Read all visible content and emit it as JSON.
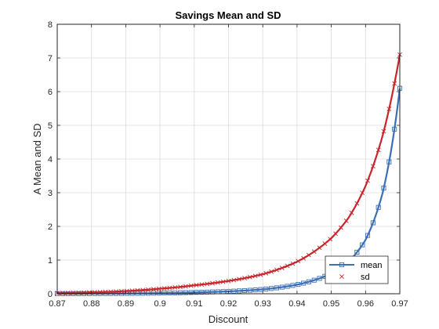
{
  "chart_data": {
    "type": "line",
    "title": "Savings Mean and SD",
    "xlabel": "Discount",
    "ylabel": "A Mean and SD",
    "xlim": [
      0.87,
      0.97
    ],
    "ylim": [
      0,
      8
    ],
    "xticks": [
      "0.87",
      "0.88",
      "0.89",
      "0.9",
      "0.91",
      "0.92",
      "0.93",
      "0.94",
      "0.95",
      "0.96",
      "0.97"
    ],
    "yticks": [
      "0",
      "1",
      "2",
      "3",
      "4",
      "5",
      "6",
      "7",
      "8"
    ],
    "grid": true,
    "legend_position": "bottom-right",
    "x": [
      0.87,
      0.88,
      0.89,
      0.9,
      0.91,
      0.92,
      0.93,
      0.94,
      0.95,
      0.955,
      0.96,
      0.965,
      0.97
    ],
    "series": [
      {
        "name": "mean",
        "marker": "square",
        "color": "#3b6fb6",
        "values": [
          0.0,
          0.005,
          0.01,
          0.02,
          0.04,
          0.07,
          0.13,
          0.27,
          0.6,
          0.95,
          1.6,
          3.0,
          6.1
        ]
      },
      {
        "name": "sd",
        "marker": "x",
        "color": "#c8262b",
        "values": [
          0.02,
          0.04,
          0.08,
          0.15,
          0.25,
          0.38,
          0.58,
          0.95,
          1.65,
          2.25,
          3.2,
          4.7,
          7.1
        ]
      }
    ]
  }
}
